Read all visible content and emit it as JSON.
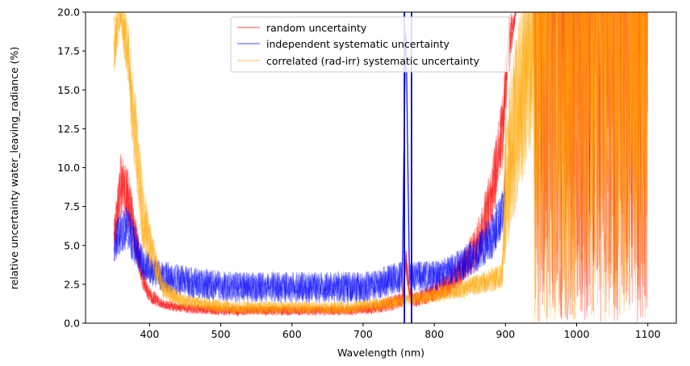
{
  "chart_data": {
    "type": "line",
    "xlabel": "Wavelength (nm)",
    "ylabel": "relative uncertainty water_leaving_radiance (%)",
    "xlim": [
      310,
      1140
    ],
    "ylim": [
      0,
      20
    ],
    "xticks": [
      400,
      500,
      600,
      700,
      800,
      900,
      1000,
      1100
    ],
    "yticks": [
      0.0,
      2.5,
      5.0,
      7.5,
      10.0,
      12.5,
      15.0,
      17.5,
      20.0
    ],
    "grid": false,
    "legend_position": "top-center",
    "series": [
      {
        "name": "random uncertainty",
        "color": "#ff0000",
        "x": [
          350,
          360,
          370,
          380,
          390,
          400,
          410,
          420,
          440,
          460,
          480,
          500,
          520,
          540,
          560,
          580,
          600,
          620,
          640,
          660,
          680,
          700,
          720,
          740,
          755,
          760,
          765,
          770,
          780,
          800,
          820,
          840,
          860,
          880,
          895,
          905,
          915,
          930,
          950,
          980,
          1000,
          1030,
          1060,
          1100
        ],
        "values": [
          5.5,
          9.0,
          8.0,
          5.5,
          3.0,
          1.8,
          1.5,
          1.2,
          1.0,
          0.9,
          0.9,
          0.8,
          0.8,
          0.8,
          0.8,
          0.8,
          0.8,
          0.8,
          0.8,
          0.8,
          0.8,
          0.9,
          1.0,
          1.3,
          1.5,
          4.0,
          2.0,
          1.5,
          1.6,
          2.0,
          2.5,
          3.5,
          5.0,
          8.0,
          12.0,
          18.0,
          20.0,
          20.0,
          20.0,
          20.0,
          20.0,
          20.0,
          20.0,
          20.0
        ],
        "spread": [
          1.2,
          2.0,
          2.0,
          1.5,
          0.8,
          0.5,
          0.4,
          0.3,
          0.3,
          0.3,
          0.3,
          0.3,
          0.3,
          0.3,
          0.3,
          0.3,
          0.3,
          0.3,
          0.3,
          0.3,
          0.3,
          0.3,
          0.4,
          0.5,
          0.5,
          1.0,
          0.5,
          0.5,
          0.5,
          0.6,
          0.8,
          1.0,
          1.5,
          2.0,
          2.5,
          2.0,
          0,
          0,
          0,
          0,
          0,
          0,
          0,
          0
        ]
      },
      {
        "name": "independent systematic uncertainty",
        "color": "#0000ff",
        "x": [
          350,
          360,
          370,
          380,
          390,
          400,
          410,
          420,
          440,
          460,
          480,
          500,
          520,
          540,
          560,
          580,
          600,
          620,
          640,
          660,
          680,
          700,
          720,
          740,
          755,
          760,
          765,
          770,
          780,
          800,
          820,
          840,
          860,
          880,
          895,
          900
        ],
        "values": [
          5.0,
          6.0,
          6.0,
          5.0,
          4.0,
          3.5,
          3.2,
          3.0,
          2.8,
          2.6,
          2.5,
          2.4,
          2.3,
          2.3,
          2.3,
          2.3,
          2.3,
          2.3,
          2.3,
          2.3,
          2.3,
          2.3,
          2.5,
          2.8,
          3.0,
          20.0,
          3.0,
          3.0,
          3.0,
          3.0,
          3.3,
          3.8,
          4.5,
          5.5,
          7.0,
          9.0
        ],
        "spread": [
          1.2,
          1.5,
          1.5,
          1.3,
          1.2,
          1.0,
          1.0,
          1.0,
          1.0,
          1.0,
          1.0,
          1.0,
          1.0,
          1.0,
          1.0,
          1.0,
          1.0,
          1.0,
          1.0,
          1.0,
          1.0,
          1.0,
          1.0,
          1.0,
          1.0,
          0,
          1.0,
          1.0,
          1.0,
          1.0,
          1.0,
          1.1,
          1.2,
          1.5,
          1.5,
          1.5
        ]
      },
      {
        "name": "correlated (rad-irr) systematic uncertainty",
        "color": "#ffa500",
        "x": [
          350,
          360,
          370,
          380,
          390,
          400,
          410,
          420,
          440,
          460,
          480,
          500,
          520,
          540,
          560,
          580,
          600,
          620,
          640,
          660,
          680,
          700,
          720,
          740,
          760,
          780,
          800,
          820,
          840,
          860,
          880,
          895,
          900,
          920,
          940,
          960,
          980,
          1000,
          1020,
          1040,
          1060,
          1080,
          1100
        ],
        "values": [
          18.0,
          20.0,
          17.0,
          12.0,
          7.0,
          5.0,
          3.5,
          2.2,
          1.6,
          1.3,
          1.2,
          1.1,
          1.0,
          1.0,
          1.0,
          1.0,
          1.0,
          1.0,
          1.0,
          1.0,
          1.0,
          1.1,
          1.2,
          1.3,
          1.5,
          1.6,
          1.8,
          2.0,
          2.2,
          2.5,
          2.8,
          3.0,
          9.0,
          14.0,
          18.0,
          19.0,
          18.0,
          17.0,
          17.0,
          16.0,
          17.0,
          17.0,
          18.0
        ],
        "spread": [
          2.0,
          1.0,
          2.5,
          3.0,
          2.5,
          1.5,
          1.0,
          0.7,
          0.5,
          0.4,
          0.4,
          0.4,
          0.4,
          0.4,
          0.4,
          0.4,
          0.4,
          0.4,
          0.4,
          0.4,
          0.4,
          0.4,
          0.4,
          0.4,
          0.4,
          0.4,
          0.5,
          0.5,
          0.6,
          0.7,
          0.8,
          0.8,
          5.0,
          6.0,
          7.0,
          6.0,
          6.0,
          6.0,
          6.0,
          6.0,
          6.0,
          6.0,
          6.0
        ]
      }
    ]
  }
}
